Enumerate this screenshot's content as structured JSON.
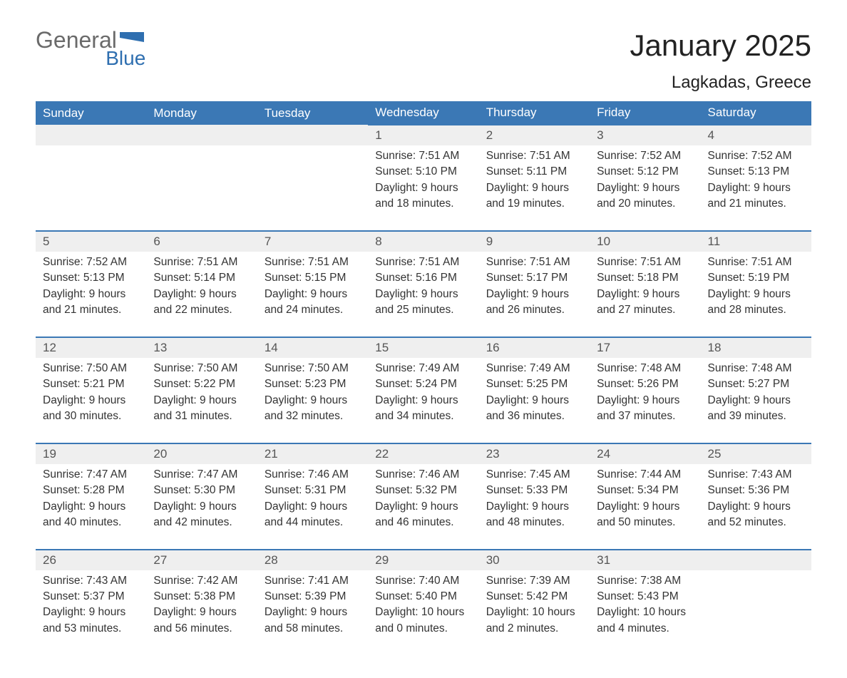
{
  "logo": {
    "text_general": "General",
    "text_blue": "Blue",
    "flag_color": "#2f6fb0"
  },
  "title": "January 2025",
  "location": "Lagkadas, Greece",
  "colors": {
    "header_bg": "#3b78b5",
    "header_text": "#ffffff",
    "daynum_bg": "#efefef",
    "daynum_border": "#3b78b5",
    "body_text": "#333333",
    "logo_gray": "#6a6a6a",
    "logo_blue": "#2f6fb0",
    "page_bg": "#ffffff"
  },
  "typography": {
    "title_fontsize": 42,
    "location_fontsize": 24,
    "header_fontsize": 17,
    "daynum_fontsize": 17,
    "detail_fontsize": 15.5,
    "font_family": "Arial"
  },
  "day_headers": [
    "Sunday",
    "Monday",
    "Tuesday",
    "Wednesday",
    "Thursday",
    "Friday",
    "Saturday"
  ],
  "weeks": [
    [
      null,
      null,
      null,
      {
        "n": "1",
        "sunrise": "7:51 AM",
        "sunset": "5:10 PM",
        "daylight": "9 hours and 18 minutes."
      },
      {
        "n": "2",
        "sunrise": "7:51 AM",
        "sunset": "5:11 PM",
        "daylight": "9 hours and 19 minutes."
      },
      {
        "n": "3",
        "sunrise": "7:52 AM",
        "sunset": "5:12 PM",
        "daylight": "9 hours and 20 minutes."
      },
      {
        "n": "4",
        "sunrise": "7:52 AM",
        "sunset": "5:13 PM",
        "daylight": "9 hours and 21 minutes."
      }
    ],
    [
      {
        "n": "5",
        "sunrise": "7:52 AM",
        "sunset": "5:13 PM",
        "daylight": "9 hours and 21 minutes."
      },
      {
        "n": "6",
        "sunrise": "7:51 AM",
        "sunset": "5:14 PM",
        "daylight": "9 hours and 22 minutes."
      },
      {
        "n": "7",
        "sunrise": "7:51 AM",
        "sunset": "5:15 PM",
        "daylight": "9 hours and 24 minutes."
      },
      {
        "n": "8",
        "sunrise": "7:51 AM",
        "sunset": "5:16 PM",
        "daylight": "9 hours and 25 minutes."
      },
      {
        "n": "9",
        "sunrise": "7:51 AM",
        "sunset": "5:17 PM",
        "daylight": "9 hours and 26 minutes."
      },
      {
        "n": "10",
        "sunrise": "7:51 AM",
        "sunset": "5:18 PM",
        "daylight": "9 hours and 27 minutes."
      },
      {
        "n": "11",
        "sunrise": "7:51 AM",
        "sunset": "5:19 PM",
        "daylight": "9 hours and 28 minutes."
      }
    ],
    [
      {
        "n": "12",
        "sunrise": "7:50 AM",
        "sunset": "5:21 PM",
        "daylight": "9 hours and 30 minutes."
      },
      {
        "n": "13",
        "sunrise": "7:50 AM",
        "sunset": "5:22 PM",
        "daylight": "9 hours and 31 minutes."
      },
      {
        "n": "14",
        "sunrise": "7:50 AM",
        "sunset": "5:23 PM",
        "daylight": "9 hours and 32 minutes."
      },
      {
        "n": "15",
        "sunrise": "7:49 AM",
        "sunset": "5:24 PM",
        "daylight": "9 hours and 34 minutes."
      },
      {
        "n": "16",
        "sunrise": "7:49 AM",
        "sunset": "5:25 PM",
        "daylight": "9 hours and 36 minutes."
      },
      {
        "n": "17",
        "sunrise": "7:48 AM",
        "sunset": "5:26 PM",
        "daylight": "9 hours and 37 minutes."
      },
      {
        "n": "18",
        "sunrise": "7:48 AM",
        "sunset": "5:27 PM",
        "daylight": "9 hours and 39 minutes."
      }
    ],
    [
      {
        "n": "19",
        "sunrise": "7:47 AM",
        "sunset": "5:28 PM",
        "daylight": "9 hours and 40 minutes."
      },
      {
        "n": "20",
        "sunrise": "7:47 AM",
        "sunset": "5:30 PM",
        "daylight": "9 hours and 42 minutes."
      },
      {
        "n": "21",
        "sunrise": "7:46 AM",
        "sunset": "5:31 PM",
        "daylight": "9 hours and 44 minutes."
      },
      {
        "n": "22",
        "sunrise": "7:46 AM",
        "sunset": "5:32 PM",
        "daylight": "9 hours and 46 minutes."
      },
      {
        "n": "23",
        "sunrise": "7:45 AM",
        "sunset": "5:33 PM",
        "daylight": "9 hours and 48 minutes."
      },
      {
        "n": "24",
        "sunrise": "7:44 AM",
        "sunset": "5:34 PM",
        "daylight": "9 hours and 50 minutes."
      },
      {
        "n": "25",
        "sunrise": "7:43 AM",
        "sunset": "5:36 PM",
        "daylight": "9 hours and 52 minutes."
      }
    ],
    [
      {
        "n": "26",
        "sunrise": "7:43 AM",
        "sunset": "5:37 PM",
        "daylight": "9 hours and 53 minutes."
      },
      {
        "n": "27",
        "sunrise": "7:42 AM",
        "sunset": "5:38 PM",
        "daylight": "9 hours and 56 minutes."
      },
      {
        "n": "28",
        "sunrise": "7:41 AM",
        "sunset": "5:39 PM",
        "daylight": "9 hours and 58 minutes."
      },
      {
        "n": "29",
        "sunrise": "7:40 AM",
        "sunset": "5:40 PM",
        "daylight": "10 hours and 0 minutes."
      },
      {
        "n": "30",
        "sunrise": "7:39 AM",
        "sunset": "5:42 PM",
        "daylight": "10 hours and 2 minutes."
      },
      {
        "n": "31",
        "sunrise": "7:38 AM",
        "sunset": "5:43 PM",
        "daylight": "10 hours and 4 minutes."
      },
      null
    ]
  ],
  "labels": {
    "sunrise": "Sunrise: ",
    "sunset": "Sunset: ",
    "daylight": "Daylight: "
  }
}
